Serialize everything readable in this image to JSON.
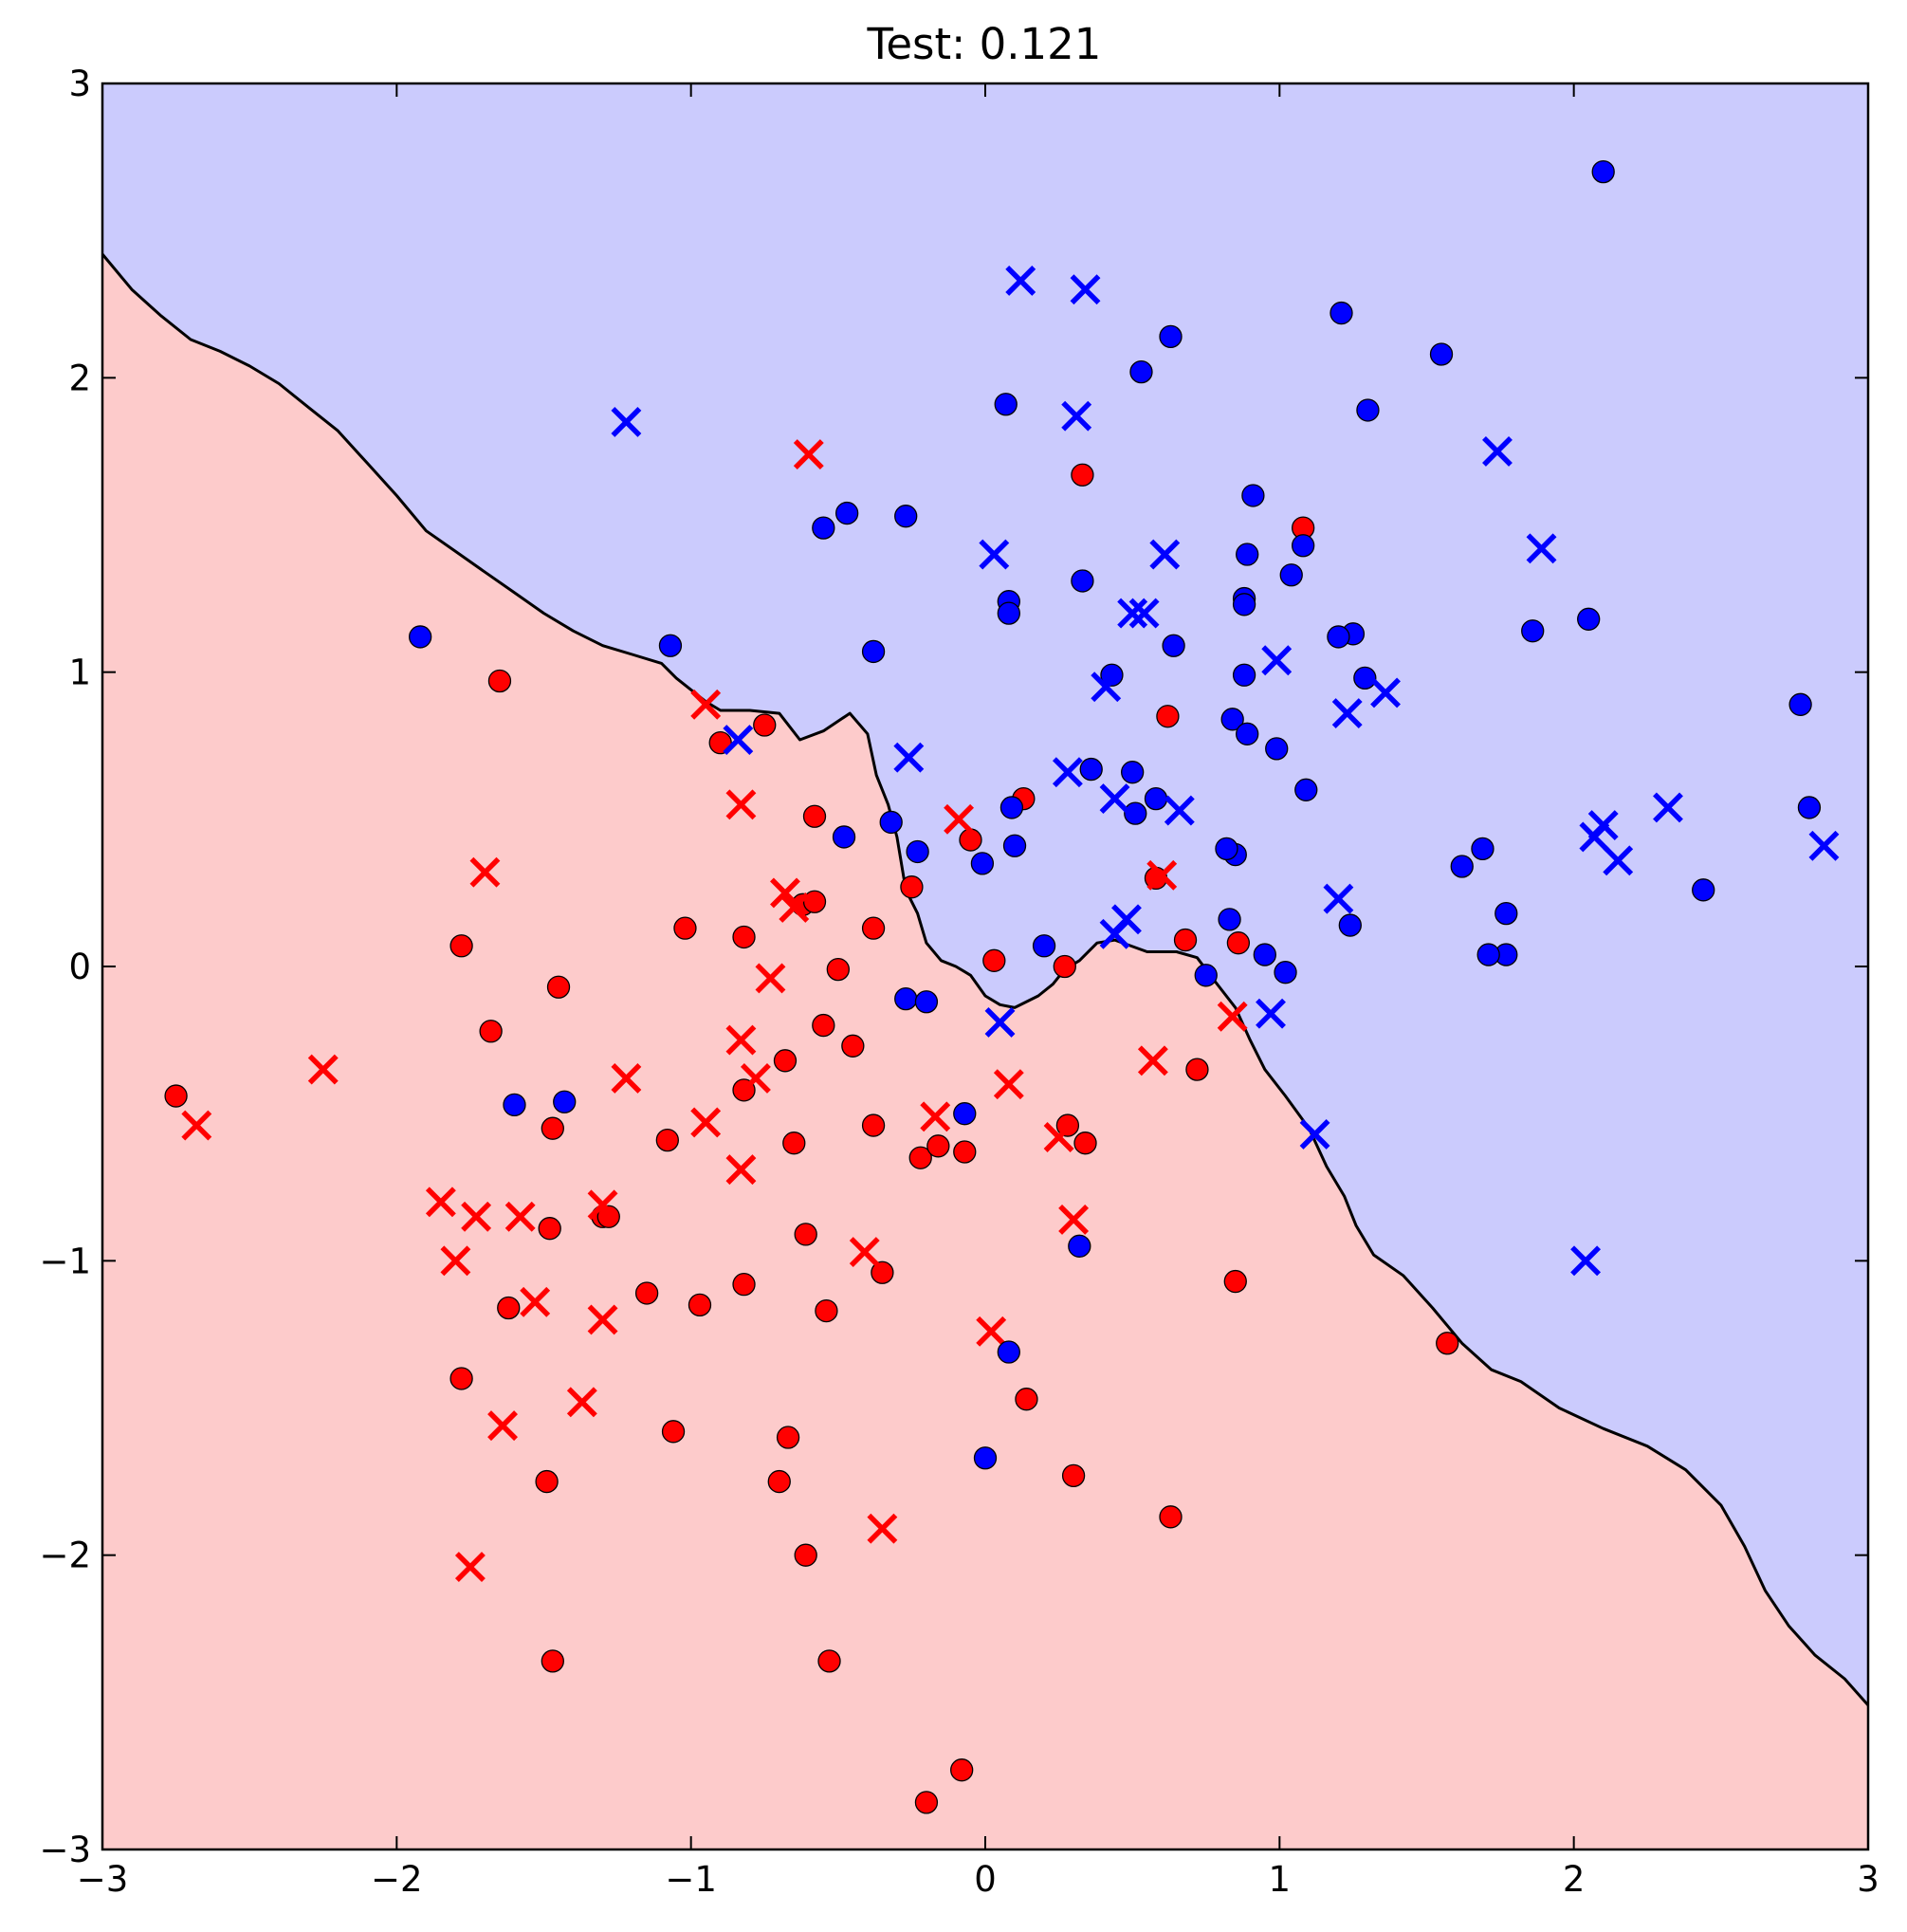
{
  "chart_data": {
    "type": "scatter",
    "title": "Test: 0.121",
    "xlabel": "",
    "ylabel": "",
    "xlim": [
      -3,
      3
    ],
    "ylim": [
      -3,
      3
    ],
    "xticks": [
      "−3",
      "−2",
      "−1",
      "0",
      "1",
      "2",
      "3"
    ],
    "yticks": [
      "−3",
      "−2",
      "−1",
      "0",
      "1",
      "2",
      "3"
    ],
    "grid": false,
    "legend": "none",
    "colors": {
      "class_red": "#ff0000",
      "class_blue": "#0000ff",
      "region_red": "#fdcbcb",
      "region_blue": "#cbcbfd",
      "boundary": "#000000"
    },
    "decision_boundary": [
      [
        -3.0,
        2.42
      ],
      [
        -2.9,
        2.3
      ],
      [
        -2.8,
        2.21
      ],
      [
        -2.7,
        2.13
      ],
      [
        -2.6,
        2.09
      ],
      [
        -2.5,
        2.04
      ],
      [
        -2.4,
        1.98
      ],
      [
        -2.3,
        1.9
      ],
      [
        -2.2,
        1.82
      ],
      [
        -2.1,
        1.71
      ],
      [
        -2.0,
        1.6
      ],
      [
        -1.9,
        1.48
      ],
      [
        -1.8,
        1.41
      ],
      [
        -1.7,
        1.34
      ],
      [
        -1.6,
        1.27
      ],
      [
        -1.5,
        1.2
      ],
      [
        -1.4,
        1.14
      ],
      [
        -1.3,
        1.09
      ],
      [
        -1.2,
        1.06
      ],
      [
        -1.1,
        1.03
      ],
      [
        -1.05,
        0.98
      ],
      [
        -1.0,
        0.94
      ],
      [
        -0.95,
        0.9
      ],
      [
        -0.9,
        0.87
      ],
      [
        -0.8,
        0.87
      ],
      [
        -0.7,
        0.86
      ],
      [
        -0.63,
        0.77
      ],
      [
        -0.55,
        0.8
      ],
      [
        -0.46,
        0.86
      ],
      [
        -0.4,
        0.79
      ],
      [
        -0.37,
        0.65
      ],
      [
        -0.33,
        0.55
      ],
      [
        -0.3,
        0.44
      ],
      [
        -0.27,
        0.26
      ],
      [
        -0.23,
        0.18
      ],
      [
        -0.2,
        0.08
      ],
      [
        -0.15,
        0.02
      ],
      [
        -0.1,
        0.0
      ],
      [
        -0.05,
        -0.03
      ],
      [
        0.0,
        -0.1
      ],
      [
        0.05,
        -0.13
      ],
      [
        0.1,
        -0.14
      ],
      [
        0.18,
        -0.1
      ],
      [
        0.23,
        -0.06
      ],
      [
        0.27,
        -0.01
      ],
      [
        0.32,
        0.02
      ],
      [
        0.38,
        0.08
      ],
      [
        0.44,
        0.09
      ],
      [
        0.55,
        0.05
      ],
      [
        0.65,
        0.05
      ],
      [
        0.72,
        0.03
      ],
      [
        0.78,
        -0.05
      ],
      [
        0.85,
        -0.14
      ],
      [
        0.9,
        -0.25
      ],
      [
        0.95,
        -0.35
      ],
      [
        1.02,
        -0.44
      ],
      [
        1.1,
        -0.55
      ],
      [
        1.16,
        -0.68
      ],
      [
        1.22,
        -0.78
      ],
      [
        1.26,
        -0.88
      ],
      [
        1.32,
        -0.98
      ],
      [
        1.42,
        -1.05
      ],
      [
        1.52,
        -1.16
      ],
      [
        1.62,
        -1.28
      ],
      [
        1.72,
        -1.37
      ],
      [
        1.82,
        -1.41
      ],
      [
        1.95,
        -1.5
      ],
      [
        2.1,
        -1.57
      ],
      [
        2.25,
        -1.63
      ],
      [
        2.38,
        -1.71
      ],
      [
        2.5,
        -1.83
      ],
      [
        2.58,
        -1.97
      ],
      [
        2.65,
        -2.12
      ],
      [
        2.73,
        -2.24
      ],
      [
        2.82,
        -2.34
      ],
      [
        2.92,
        -2.42
      ],
      [
        3.0,
        -2.51
      ]
    ],
    "series": [
      {
        "class": "red",
        "marker": "o",
        "x": [
          -2.75,
          -1.65,
          -0.75,
          -0.9,
          -0.58,
          -0.05,
          -0.25,
          0.13,
          0.58,
          -1.78,
          -1.68,
          -1.02,
          -0.82,
          -0.62,
          -0.58,
          -0.38,
          -0.5,
          -1.45,
          -1.3,
          -0.55,
          -0.45,
          -0.82,
          -0.68,
          -1.47,
          -1.08,
          -0.65,
          -0.38,
          -0.22,
          -0.16,
          -0.07,
          0.28,
          0.34,
          -1.48,
          -1.28,
          -0.61,
          -0.82,
          -0.35,
          -1.62,
          -1.15,
          -0.97,
          -0.54,
          -1.78,
          0.14,
          -1.06,
          -0.67,
          -0.7,
          -1.49,
          0.3,
          0.63,
          -0.61,
          -1.47,
          -0.53,
          -0.08,
          -0.2,
          0.33,
          1.08,
          0.62,
          0.03,
          0.27,
          0.68,
          0.72,
          0.86,
          0.85,
          1.57
        ],
        "y": [
          -0.44,
          0.97,
          0.82,
          0.76,
          0.51,
          0.43,
          0.27,
          0.57,
          0.3,
          0.07,
          -0.22,
          0.13,
          0.1,
          0.21,
          0.22,
          0.13,
          -0.01,
          -0.07,
          -0.85,
          -0.2,
          -0.27,
          -0.42,
          -0.32,
          -0.55,
          -0.59,
          -0.6,
          -0.54,
          -0.65,
          -0.61,
          -0.63,
          -0.54,
          -0.6,
          -0.89,
          -0.85,
          -0.91,
          -1.08,
          -1.04,
          -1.16,
          -1.11,
          -1.15,
          -1.17,
          -1.4,
          -1.47,
          -1.58,
          -1.6,
          -1.75,
          -1.75,
          -1.73,
          -1.87,
          -2.0,
          -2.36,
          -2.36,
          -2.73,
          -2.84,
          1.67,
          1.49,
          0.85,
          0.02,
          0.0,
          0.09,
          -0.35,
          0.08,
          -1.07,
          -1.28
        ]
      },
      {
        "class": "red",
        "marker": "x",
        "x": [
          -0.6,
          -0.95,
          -0.83,
          -1.7,
          -0.68,
          -0.65,
          -0.73,
          -2.25,
          -0.83,
          -0.78,
          -1.22,
          -0.95,
          -2.68,
          -0.83,
          -1.85,
          -1.73,
          -1.58,
          -1.3,
          -1.8,
          -1.53,
          -1.3,
          -1.37,
          -1.64,
          -1.75,
          -0.41,
          -0.17,
          0.08,
          0.25,
          0.3,
          0.02,
          -0.35,
          -0.09,
          0.6,
          0.57,
          0.84
        ],
        "y": [
          1.74,
          0.89,
          0.55,
          0.32,
          0.25,
          0.2,
          -0.04,
          -0.35,
          -0.25,
          -0.38,
          -0.38,
          -0.53,
          -0.54,
          -0.69,
          -0.8,
          -0.85,
          -0.85,
          -0.81,
          -1.0,
          -1.14,
          -1.2,
          -1.48,
          -1.56,
          -2.04,
          -0.97,
          -0.51,
          -0.4,
          -0.58,
          -0.86,
          -1.24,
          -1.91,
          0.5,
          0.31,
          -0.32,
          -0.17
        ]
      },
      {
        "class": "blue",
        "marker": "o",
        "x": [
          2.1,
          1.21,
          0.63,
          1.55,
          0.53,
          0.07,
          1.3,
          0.91,
          -0.47,
          -0.27,
          -0.55,
          1.08,
          1.04,
          0.89,
          0.33,
          0.08,
          0.08,
          0.88,
          0.88,
          1.25,
          2.05,
          1.86,
          1.2,
          0.64,
          -1.07,
          -0.38,
          -1.92,
          0.43,
          1.29,
          0.88,
          0.84,
          0.89,
          0.99,
          0.36,
          0.5,
          1.09,
          0.09,
          0.58,
          0.51,
          -0.32,
          -0.48,
          -0.23,
          0.1,
          -0.01,
          0.85,
          0.82,
          1.62,
          1.69,
          1.77,
          2.44,
          2.77,
          2.8,
          1.24,
          1.77,
          0.2,
          0.75,
          0.95,
          1.02,
          0.83,
          1.71,
          -0.27,
          -0.2,
          -0.07,
          -1.6,
          -1.43,
          0.32,
          0.08,
          0.0
        ],
        "y": [
          2.7,
          2.22,
          2.14,
          2.08,
          2.02,
          1.91,
          1.89,
          1.6,
          1.54,
          1.53,
          1.49,
          1.43,
          1.33,
          1.4,
          1.31,
          1.24,
          1.2,
          1.25,
          1.23,
          1.13,
          1.18,
          1.14,
          1.12,
          1.09,
          1.09,
          1.07,
          1.12,
          0.99,
          0.98,
          0.99,
          0.84,
          0.79,
          0.74,
          0.67,
          0.66,
          0.6,
          0.54,
          0.57,
          0.52,
          0.49,
          0.44,
          0.39,
          0.41,
          0.35,
          0.38,
          0.4,
          0.34,
          0.4,
          0.18,
          0.26,
          0.89,
          0.54,
          0.14,
          0.04,
          0.07,
          -0.03,
          0.04,
          -0.02,
          0.16,
          0.04,
          -0.11,
          -0.12,
          -0.5,
          -0.47,
          -0.46,
          -0.95,
          -1.31,
          -1.67
        ]
      },
      {
        "class": "blue",
        "marker": "x",
        "x": [
          0.12,
          0.34,
          -1.22,
          0.31,
          1.74,
          0.03,
          0.61,
          1.89,
          0.5,
          0.54,
          0.99,
          1.36,
          1.23,
          0.41,
          -0.84,
          -0.26,
          0.28,
          0.44,
          0.66,
          2.1,
          2.07,
          2.15,
          2.32,
          2.85,
          1.2,
          0.48,
          0.44,
          0.05,
          0.97,
          1.12,
          2.04
        ],
        "y": [
          2.33,
          2.3,
          1.85,
          1.87,
          1.75,
          1.4,
          1.4,
          1.42,
          1.2,
          1.2,
          1.04,
          0.93,
          0.86,
          0.95,
          0.77,
          0.71,
          0.66,
          0.57,
          0.53,
          0.48,
          0.44,
          0.36,
          0.54,
          0.41,
          0.23,
          0.16,
          0.11,
          -0.19,
          -0.16,
          -0.57,
          -1.0
        ]
      }
    ]
  }
}
